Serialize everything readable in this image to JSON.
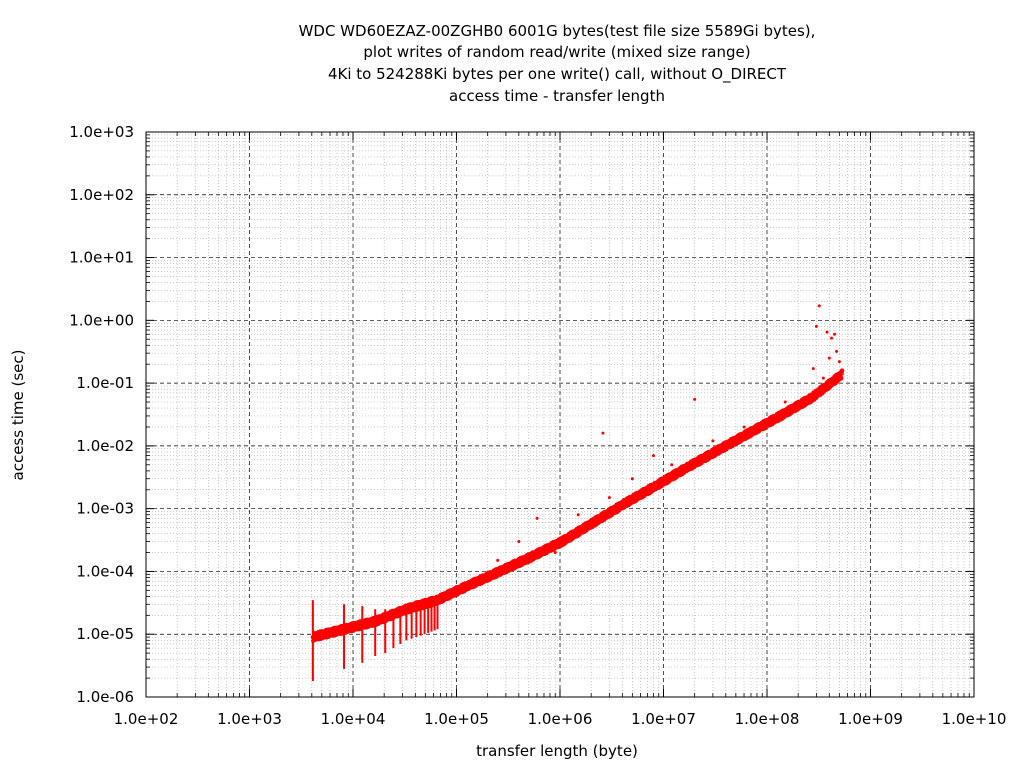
{
  "chart_data": {
    "type": "scatter",
    "title": [
      "WDC WD60EZAZ-00ZGHB0 6001G bytes(test file size 5589Gi bytes),",
      "plot writes of random read/write (mixed size range)",
      "4Ki to 524288Ki bytes per one write() call, without O_DIRECT",
      "access time - transfer length"
    ],
    "xlabel": "transfer length (byte)",
    "ylabel": "access time (sec)",
    "x_scale": "log",
    "y_scale": "log",
    "xlim": [
      100,
      10000000000
    ],
    "ylim": [
      1e-06,
      1000
    ],
    "x_ticks": [
      "1.0e+02",
      "1.0e+03",
      "1.0e+04",
      "1.0e+05",
      "1.0e+06",
      "1.0e+07",
      "1.0e+08",
      "1.0e+09",
      "1.0e+10"
    ],
    "y_ticks": [
      "1.0e-06",
      "1.0e-05",
      "1.0e-04",
      "1.0e-03",
      "1.0e-02",
      "1.0e-01",
      "1.0e+00",
      "1.0e+01",
      "1.0e+02",
      "1.0e+03"
    ],
    "grid": true,
    "minor_grid": true,
    "series": [
      {
        "color": "#ff0000",
        "trend": [
          [
            4096,
            9e-06
          ],
          [
            8192,
            1.2e-05
          ],
          [
            16384,
            1.6e-05
          ],
          [
            32768,
            2.5e-05
          ],
          [
            65536,
            3.5e-05
          ],
          [
            131072,
            6e-05
          ],
          [
            262144,
            0.0001
          ],
          [
            524288,
            0.00017
          ],
          [
            1048576,
            0.0003
          ],
          [
            2097152,
            0.0006
          ],
          [
            4194304,
            0.0012
          ],
          [
            8388608,
            0.0023
          ],
          [
            16777216,
            0.0045
          ],
          [
            33554432,
            0.0085
          ],
          [
            67108864,
            0.016
          ],
          [
            134217728,
            0.03
          ],
          [
            268435456,
            0.058
          ],
          [
            536870912,
            0.14
          ]
        ],
        "vertical_spreads": [
          [
            4096,
            1.8e-06,
            3.5e-05
          ],
          [
            8192,
            2.8e-06,
            3e-05
          ],
          [
            12288,
            3.5e-06,
            2.8e-05
          ],
          [
            16384,
            4.5e-06,
            2.5e-05
          ],
          [
            20480,
            5e-06,
            2.5e-05
          ],
          [
            24576,
            6e-06,
            2.5e-05
          ],
          [
            28672,
            7e-06,
            2.5e-05
          ],
          [
            32768,
            8e-06,
            2.5e-05
          ],
          [
            36864,
            8.5e-06,
            2.8e-05
          ],
          [
            40960,
            9e-06,
            3e-05
          ],
          [
            45056,
            9.5e-06,
            3e-05
          ],
          [
            49152,
            1e-05,
            3e-05
          ],
          [
            53248,
            1.05e-05,
            3.2e-05
          ],
          [
            57344,
            1.1e-05,
            3.2e-05
          ],
          [
            61440,
            1.15e-05,
            3.2e-05
          ],
          [
            65536,
            1.2e-05,
            3.5e-05
          ]
        ],
        "outliers": [
          [
            8000000,
            0.007
          ],
          [
            2600000,
            0.016
          ],
          [
            20000000,
            0.055
          ],
          [
            280000000,
            0.17
          ],
          [
            320000000,
            1.7
          ],
          [
            300000000,
            0.8
          ],
          [
            380000000,
            0.65
          ],
          [
            420000000,
            0.52
          ],
          [
            450000000,
            0.6
          ],
          [
            470000000,
            0.32
          ],
          [
            500000000,
            0.22
          ],
          [
            350000000,
            0.12
          ],
          [
            400000000,
            0.25
          ],
          [
            150000000,
            0.05
          ],
          [
            60000000,
            0.02
          ],
          [
            30000000,
            0.012
          ],
          [
            12000000,
            0.005
          ],
          [
            5000000,
            0.003
          ],
          [
            3000000,
            0.0015
          ],
          [
            1500000,
            0.0008
          ],
          [
            600000,
            0.0007
          ],
          [
            900000,
            0.0002
          ],
          [
            400000,
            0.0003
          ],
          [
            250000,
            0.00015
          ],
          [
            200000,
            8e-05
          ],
          [
            150000,
            6e-05
          ],
          [
            120000,
            5e-05
          ]
        ]
      }
    ]
  }
}
